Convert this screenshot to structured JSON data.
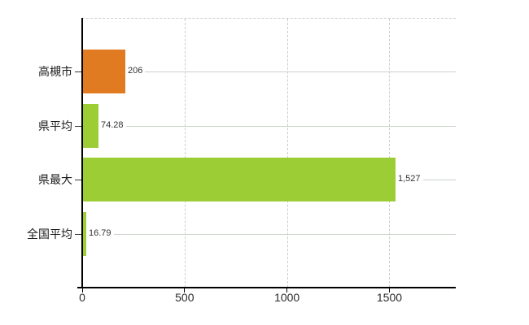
{
  "chart_data": {
    "type": "bar",
    "orientation": "horizontal",
    "title": "",
    "xlabel": "",
    "ylabel": "",
    "categories": [
      "高槻市",
      "県平均",
      "県最大",
      "全国平均"
    ],
    "values": [
      206,
      74.28,
      1527,
      16.79
    ],
    "value_labels": [
      "206",
      "74.28",
      "1,527",
      "16.79"
    ],
    "bar_colors": [
      "#e07b22",
      "#9dcd35",
      "#9dcd35",
      "#9dcd35"
    ],
    "x_ticks": [
      0,
      500,
      1000,
      1500
    ],
    "x_tick_labels": [
      "0",
      "500",
      "1000",
      "1500"
    ],
    "xlim": [
      0,
      1824
    ],
    "grid": {
      "vertical": true,
      "style": "dashed",
      "horizontal": false
    },
    "legend": {
      "visible": false
    }
  },
  "colors": {
    "background": "#ffffff",
    "axis": "#000000",
    "grid_line": "#cccccc",
    "leader_line": "#c9d2c9",
    "bar_orange": "#e07b22",
    "bar_green": "#9dcd35",
    "category_label": "#1a1a1a",
    "value_label": "#333333",
    "tick_label": "#2b2b2b"
  }
}
